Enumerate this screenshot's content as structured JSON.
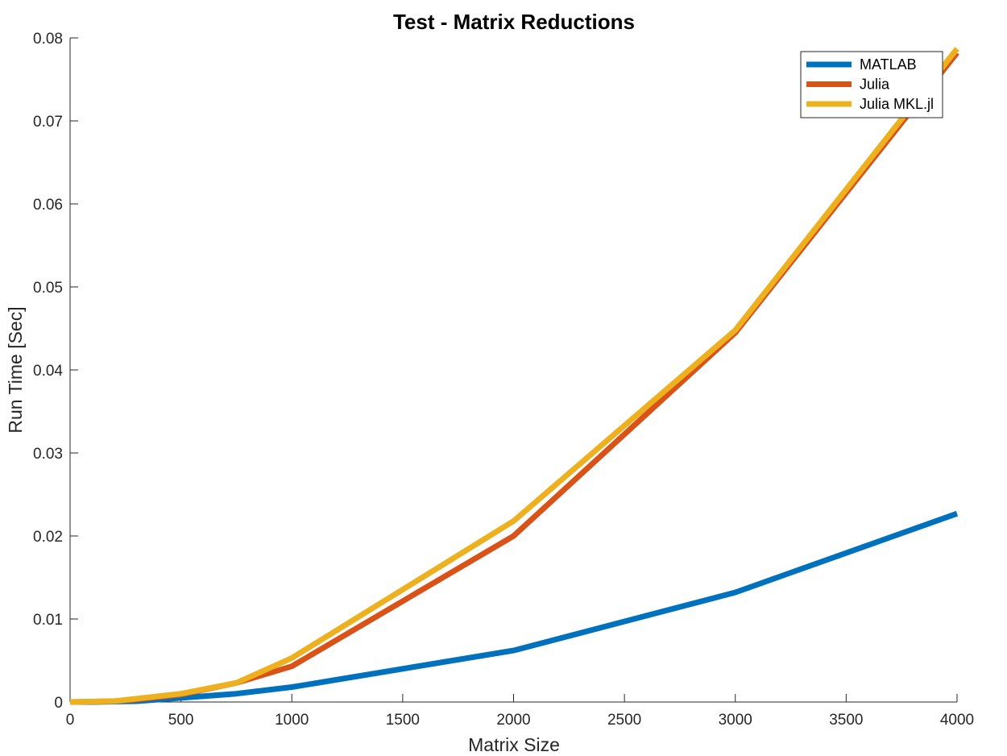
{
  "chart_data": {
    "type": "line",
    "title": "Test - Matrix Reductions",
    "xlabel": "Matrix Size",
    "ylabel": "Run Time  [Sec]",
    "xlim": [
      0,
      4000
    ],
    "ylim": [
      0,
      0.08
    ],
    "xticks": [
      0,
      500,
      1000,
      1500,
      2000,
      2500,
      3000,
      3500,
      4000
    ],
    "xtick_labels": [
      "0",
      "500",
      "1000",
      "1500",
      "2000",
      "2500",
      "3000",
      "3500",
      "4000"
    ],
    "yticks": [
      0,
      0.01,
      0.02,
      0.03,
      0.04,
      0.05,
      0.06,
      0.07,
      0.08
    ],
    "ytick_labels": [
      "0",
      "0.01",
      "0.02",
      "0.03",
      "0.04",
      "0.05",
      "0.06",
      "0.07",
      "0.08"
    ],
    "grid": false,
    "legend_position": "top-right",
    "series": [
      {
        "name": "MATLAB",
        "color": "#0072BD",
        "x": [
          0,
          100,
          200,
          300,
          500,
          750,
          1000,
          2000,
          3000,
          4000
        ],
        "y": [
          0,
          0,
          5e-05,
          0.0001,
          0.0005,
          0.001,
          0.0018,
          0.0062,
          0.0132,
          0.0227
        ]
      },
      {
        "name": "Julia",
        "color": "#D95319",
        "x": [
          0,
          100,
          200,
          300,
          500,
          750,
          1000,
          2000,
          3000,
          4000
        ],
        "y": [
          0,
          5e-05,
          0.0001,
          0.0003,
          0.0009,
          0.0023,
          0.0043,
          0.02,
          0.0445,
          0.0782
        ]
      },
      {
        "name": "Julia MKL.jl",
        "color": "#EDB120",
        "x": [
          0,
          100,
          200,
          300,
          500,
          750,
          1000,
          2000,
          3000,
          4000
        ],
        "y": [
          0,
          5e-05,
          0.0001,
          0.0004,
          0.001,
          0.0023,
          0.0053,
          0.0218,
          0.0448,
          0.0787
        ]
      }
    ]
  }
}
